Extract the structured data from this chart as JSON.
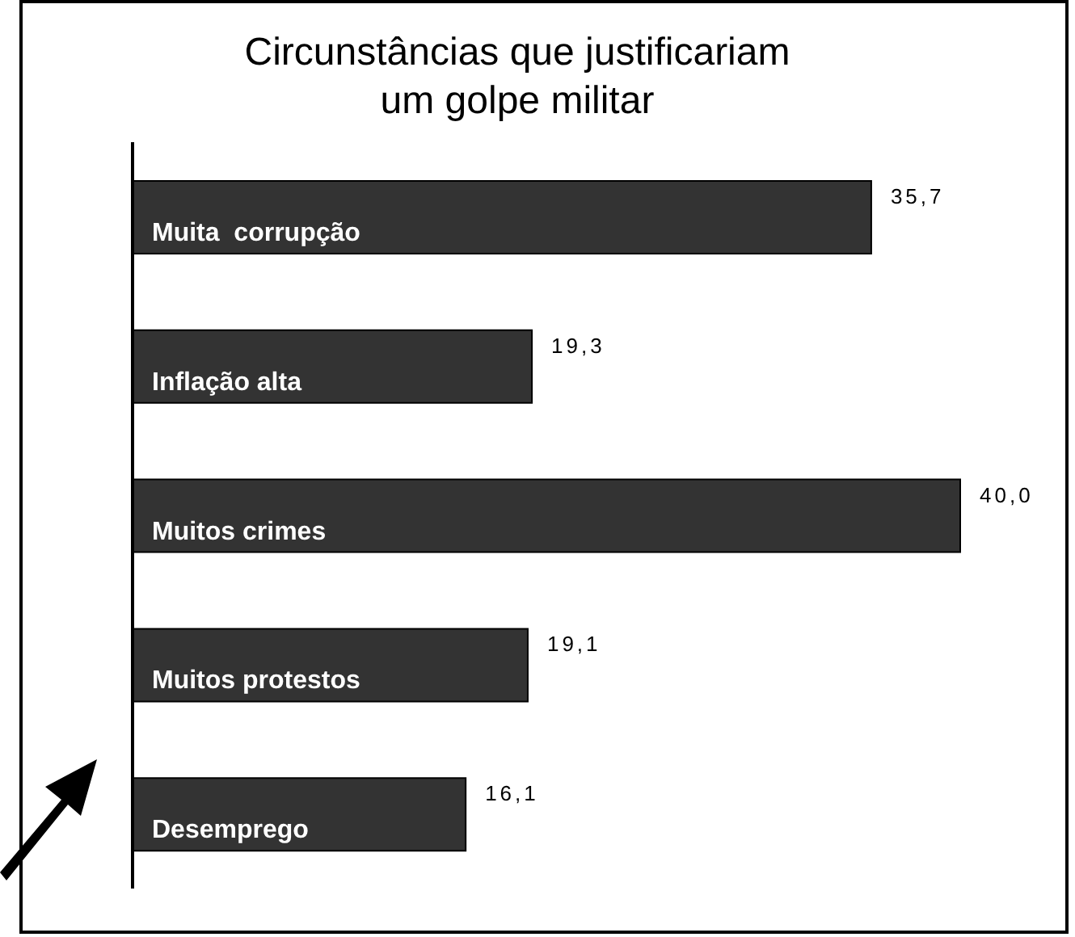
{
  "chart_data": {
    "type": "bar",
    "orientation": "horizontal",
    "title": "Circunstâncias que justificariam\num golpe militar",
    "categories": [
      "Muita  corrupção",
      "Inflação alta",
      "Muitos crimes",
      "Muitos protestos",
      "Desemprego"
    ],
    "values": [
      35.7,
      19.3,
      40.0,
      19.1,
      16.1
    ],
    "value_labels": [
      "35,7",
      "19,3",
      "40,0",
      "19,1",
      "16,1"
    ],
    "color": "#333333",
    "grid": false,
    "legend": false
  }
}
